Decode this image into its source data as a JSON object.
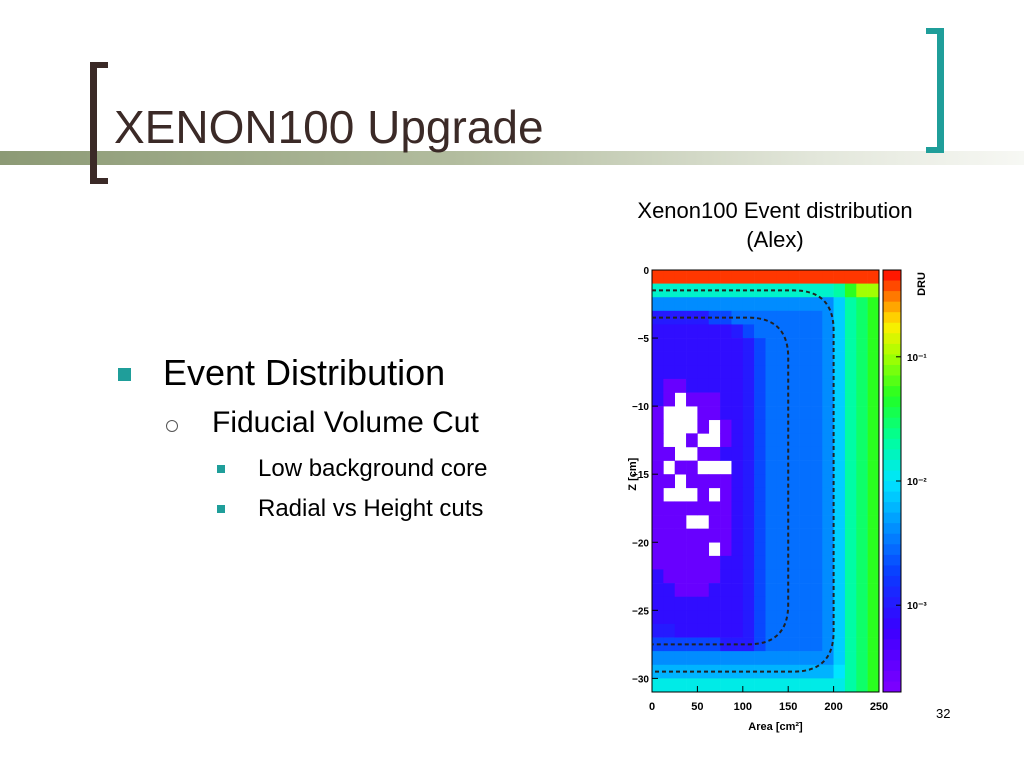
{
  "slide": {
    "title": "XENON100 Upgrade",
    "page_number": "32",
    "caption_line1": "Xenon100 Event distribution",
    "caption_line2": "(Alex)",
    "accent_color": "#1f9e9a",
    "title_color": "#3b2a27"
  },
  "bullets": [
    {
      "text": "Event Distribution",
      "level": 1
    },
    {
      "text": "Fiducial Volume Cut",
      "level": 2
    },
    {
      "text": "Low background core",
      "level": 3
    },
    {
      "text": "Radial vs Height cuts",
      "level": 3
    }
  ],
  "chart_data": {
    "type": "heatmap",
    "xlabel": "Area [cm²]",
    "ylabel": "Z [cm]",
    "colorbar_label": "DRU",
    "colorbar_scale": "log",
    "colorbar_range": [
      0.0002,
      0.5
    ],
    "colorbar_ticks": [
      "10⁻¹",
      "10⁻²",
      "10⁻³"
    ],
    "xlim": [
      0,
      250
    ],
    "ylim": [
      -31,
      0
    ],
    "x_ticks": [
      "0",
      "50",
      "100",
      "150",
      "200",
      "250"
    ],
    "y_ticks": [
      "0",
      "−5",
      "−10",
      "−15",
      "−20",
      "−25",
      "−30"
    ],
    "x_tick_values": [
      0,
      50,
      100,
      150,
      200,
      250
    ],
    "y_tick_values": [
      0,
      -5,
      -10,
      -15,
      -20,
      -25,
      -30
    ],
    "colorbar_tick_values": [
      0.1,
      0.01,
      0.001
    ],
    "x_bins": 20,
    "y_bins": 31,
    "blank_value": 0,
    "value_rows_top_to_bottom": [
      [
        0.4,
        0.4,
        0.4,
        0.4,
        0.4,
        0.4,
        0.4,
        0.4,
        0.4,
        0.4,
        0.4,
        0.4,
        0.4,
        0.4,
        0.4,
        0.4,
        0.4,
        0.4,
        0.4,
        0.4
      ],
      [
        0.015,
        0.015,
        0.015,
        0.015,
        0.015,
        0.015,
        0.015,
        0.015,
        0.015,
        0.015,
        0.015,
        0.015,
        0.015,
        0.015,
        0.015,
        0.015,
        0.02,
        0.05,
        0.1,
        0.1
      ],
      [
        0.004,
        0.004,
        0.004,
        0.004,
        0.004,
        0.004,
        0.004,
        0.004,
        0.004,
        0.004,
        0.004,
        0.004,
        0.004,
        0.004,
        0.004,
        0.004,
        0.008,
        0.02,
        0.03,
        0.05
      ],
      [
        0.001,
        0.001,
        0.001,
        0.001,
        0.001,
        0.002,
        0.002,
        0.003,
        0.003,
        0.003,
        0.003,
        0.003,
        0.003,
        0.003,
        0.003,
        0.004,
        0.008,
        0.02,
        0.03,
        0.05
      ],
      [
        0.0008,
        0.0008,
        0.0008,
        0.0008,
        0.0008,
        0.0008,
        0.0008,
        0.001,
        0.002,
        0.003,
        0.003,
        0.003,
        0.003,
        0.003,
        0.003,
        0.004,
        0.008,
        0.02,
        0.03,
        0.05
      ],
      [
        0.0008,
        0.0008,
        0.0008,
        0.0008,
        0.0008,
        0.0008,
        0.0008,
        0.0008,
        0.001,
        0.002,
        0.003,
        0.003,
        0.003,
        0.003,
        0.003,
        0.004,
        0.008,
        0.02,
        0.03,
        0.05
      ],
      [
        0.0008,
        0.0008,
        0.0008,
        0.0008,
        0.0008,
        0.0008,
        0.0008,
        0.0008,
        0.001,
        0.002,
        0.003,
        0.003,
        0.003,
        0.003,
        0.003,
        0.004,
        0.008,
        0.02,
        0.03,
        0.05
      ],
      [
        0.0008,
        0.0008,
        0.0008,
        0.0008,
        0.0008,
        0.0008,
        0.0008,
        0.0008,
        0.001,
        0.002,
        0.003,
        0.003,
        0.003,
        0.003,
        0.003,
        0.004,
        0.008,
        0.02,
        0.03,
        0.05
      ],
      [
        0.0008,
        0.0003,
        0.0003,
        0.0008,
        0.0008,
        0.0008,
        0.0008,
        0.0008,
        0.001,
        0.002,
        0.003,
        0.003,
        0.003,
        0.003,
        0.003,
        0.004,
        0.008,
        0.02,
        0.03,
        0.05
      ],
      [
        0.0008,
        0.0003,
        0,
        0.0003,
        0.0003,
        0.0003,
        0.0008,
        0.0008,
        0.001,
        0.002,
        0.003,
        0.003,
        0.003,
        0.003,
        0.003,
        0.004,
        0.008,
        0.02,
        0.03,
        0.05
      ],
      [
        0.0003,
        0,
        0,
        0,
        0.0003,
        0.0003,
        0.0008,
        0.0008,
        0.001,
        0.002,
        0.003,
        0.003,
        0.003,
        0.003,
        0.003,
        0.004,
        0.008,
        0.02,
        0.03,
        0.05
      ],
      [
        0.0003,
        0,
        0,
        0,
        0.0003,
        0,
        0.0003,
        0.0008,
        0.001,
        0.002,
        0.003,
        0.003,
        0.003,
        0.003,
        0.003,
        0.004,
        0.008,
        0.02,
        0.03,
        0.05
      ],
      [
        0.0003,
        0,
        0,
        0.0003,
        0,
        0,
        0.0003,
        0.0008,
        0.001,
        0.002,
        0.003,
        0.003,
        0.003,
        0.003,
        0.003,
        0.004,
        0.008,
        0.02,
        0.03,
        0.05
      ],
      [
        0.0003,
        0.0003,
        0,
        0,
        0.0003,
        0.0003,
        0.0008,
        0.0008,
        0.001,
        0.002,
        0.003,
        0.003,
        0.003,
        0.003,
        0.003,
        0.004,
        0.008,
        0.02,
        0.03,
        0.05
      ],
      [
        0.0003,
        0,
        0.0003,
        0.0003,
        0,
        0,
        0,
        0.0008,
        0.001,
        0.002,
        0.003,
        0.003,
        0.003,
        0.003,
        0.003,
        0.004,
        0.008,
        0.02,
        0.03,
        0.05
      ],
      [
        0.0003,
        0.0003,
        0,
        0.0003,
        0.0003,
        0.0003,
        0.0003,
        0.0008,
        0.001,
        0.002,
        0.003,
        0.003,
        0.003,
        0.003,
        0.003,
        0.004,
        0.008,
        0.02,
        0.03,
        0.05
      ],
      [
        0.0003,
        0,
        0,
        0,
        0.0003,
        0,
        0.0003,
        0.0008,
        0.001,
        0.002,
        0.003,
        0.003,
        0.003,
        0.003,
        0.003,
        0.004,
        0.008,
        0.02,
        0.03,
        0.05
      ],
      [
        0.0003,
        0.0003,
        0.0003,
        0.0003,
        0.0003,
        0.0003,
        0.0003,
        0.0008,
        0.001,
        0.002,
        0.003,
        0.003,
        0.003,
        0.003,
        0.003,
        0.004,
        0.008,
        0.02,
        0.03,
        0.05
      ],
      [
        0.0003,
        0.0003,
        0.0003,
        0,
        0,
        0.0003,
        0.0003,
        0.0008,
        0.001,
        0.002,
        0.003,
        0.003,
        0.003,
        0.003,
        0.003,
        0.004,
        0.008,
        0.02,
        0.03,
        0.05
      ],
      [
        0.0003,
        0.0003,
        0.0003,
        0.0003,
        0.0003,
        0.0003,
        0.0003,
        0.0008,
        0.001,
        0.002,
        0.003,
        0.003,
        0.003,
        0.003,
        0.003,
        0.004,
        0.008,
        0.02,
        0.03,
        0.05
      ],
      [
        0.0003,
        0.0003,
        0.0003,
        0.0003,
        0.0003,
        0,
        0.0003,
        0.0008,
        0.001,
        0.002,
        0.003,
        0.003,
        0.003,
        0.003,
        0.003,
        0.004,
        0.008,
        0.02,
        0.03,
        0.05
      ],
      [
        0.0003,
        0.0003,
        0.0003,
        0.0003,
        0.0003,
        0.0003,
        0.0008,
        0.0008,
        0.001,
        0.002,
        0.003,
        0.003,
        0.003,
        0.003,
        0.003,
        0.004,
        0.008,
        0.02,
        0.03,
        0.05
      ],
      [
        0.0008,
        0.0003,
        0.0003,
        0.0003,
        0.0003,
        0.0003,
        0.0008,
        0.0008,
        0.001,
        0.002,
        0.003,
        0.003,
        0.003,
        0.003,
        0.003,
        0.004,
        0.008,
        0.02,
        0.03,
        0.05
      ],
      [
        0.0008,
        0.0008,
        0.0003,
        0.0003,
        0.0003,
        0.0008,
        0.0008,
        0.0008,
        0.001,
        0.002,
        0.003,
        0.003,
        0.003,
        0.003,
        0.003,
        0.004,
        0.008,
        0.02,
        0.03,
        0.05
      ],
      [
        0.0008,
        0.0008,
        0.0008,
        0.0008,
        0.0008,
        0.0008,
        0.0008,
        0.0008,
        0.001,
        0.002,
        0.003,
        0.003,
        0.003,
        0.003,
        0.003,
        0.004,
        0.008,
        0.02,
        0.03,
        0.05
      ],
      [
        0.0008,
        0.0008,
        0.0008,
        0.0008,
        0.0008,
        0.0008,
        0.0008,
        0.0008,
        0.001,
        0.002,
        0.003,
        0.003,
        0.003,
        0.003,
        0.003,
        0.004,
        0.008,
        0.02,
        0.03,
        0.05
      ],
      [
        0.001,
        0.001,
        0.0008,
        0.0008,
        0.0008,
        0.0008,
        0.0008,
        0.0008,
        0.001,
        0.002,
        0.003,
        0.003,
        0.003,
        0.003,
        0.003,
        0.004,
        0.008,
        0.02,
        0.03,
        0.05
      ],
      [
        0.002,
        0.002,
        0.002,
        0.002,
        0.002,
        0.002,
        0.001,
        0.001,
        0.001,
        0.002,
        0.003,
        0.003,
        0.003,
        0.003,
        0.003,
        0.004,
        0.008,
        0.02,
        0.03,
        0.05
      ],
      [
        0.004,
        0.004,
        0.004,
        0.004,
        0.004,
        0.004,
        0.004,
        0.004,
        0.004,
        0.004,
        0.004,
        0.004,
        0.004,
        0.004,
        0.004,
        0.004,
        0.008,
        0.02,
        0.03,
        0.05
      ],
      [
        0.006,
        0.006,
        0.006,
        0.006,
        0.006,
        0.006,
        0.006,
        0.006,
        0.006,
        0.006,
        0.006,
        0.006,
        0.006,
        0.006,
        0.006,
        0.006,
        0.01,
        0.02,
        0.03,
        0.05
      ],
      [
        0.012,
        0.012,
        0.012,
        0.012,
        0.012,
        0.012,
        0.012,
        0.012,
        0.012,
        0.012,
        0.012,
        0.012,
        0.012,
        0.012,
        0.012,
        0.012,
        0.012,
        0.02,
        0.03,
        0.05
      ]
    ],
    "cut_outer": {
      "label": "",
      "r2_max": 200,
      "z_top": -1.5,
      "z_bottom": -29.5
    },
    "cut_inner": {
      "label": "",
      "r2_max": 150,
      "z_top": -3.5,
      "z_bottom": -27.5
    }
  }
}
